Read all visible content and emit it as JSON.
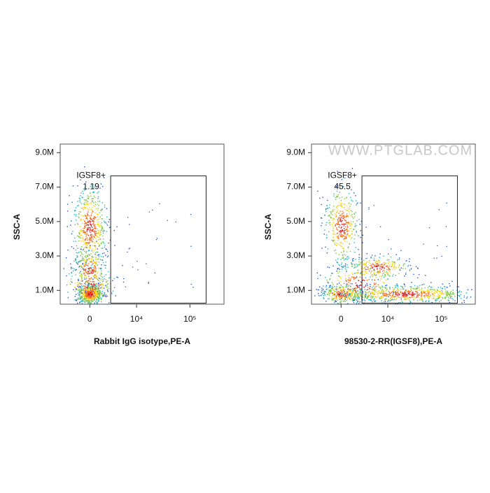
{
  "chart_data": [
    {
      "type": "scatter",
      "x_label": "Rabbit IgG isotype,PE-A",
      "y_label": "SSC-A",
      "xlim": [
        -4500,
        430000
      ],
      "xticks": [
        0,
        {
          "value": 10000,
          "label": "10⁴"
        },
        {
          "value": 100000,
          "label": "10⁵"
        }
      ],
      "ylim": [
        200000,
        9500000
      ],
      "yticks": [
        {
          "value": 1000000,
          "label": "1.0M"
        },
        {
          "value": 3000000,
          "label": "3.0M"
        },
        {
          "value": 5000000,
          "label": "5.0M"
        },
        {
          "value": 7000000,
          "label": "7.0M"
        },
        {
          "value": 9000000,
          "label": "9.0M"
        }
      ],
      "gate": {
        "label": "IGSF8+",
        "value": 1.19,
        "x": [
          2800,
          200000
        ],
        "y": [
          260000,
          7650000
        ]
      }
    },
    {
      "type": "scatter",
      "x_label": "98530-2-RR(IGSF8),PE-A",
      "y_label": "SSC-A",
      "watermark": "WWW.PTGLAB.COM",
      "xlim": [
        -4500,
        430000
      ],
      "xticks": [
        0,
        {
          "value": 10000,
          "label": "10⁴"
        },
        {
          "value": 100000,
          "label": "10⁵"
        }
      ],
      "ylim": [
        200000,
        9500000
      ],
      "yticks": [
        {
          "value": 1000000,
          "label": "1.0M"
        },
        {
          "value": 3000000,
          "label": "3.0M"
        },
        {
          "value": 5000000,
          "label": "5.0M"
        },
        {
          "value": 7000000,
          "label": "7.0M"
        },
        {
          "value": 9000000,
          "label": "9.0M"
        }
      ],
      "gate": {
        "label": "IGSF8+",
        "value": 45.5,
        "x": [
          2800,
          200000
        ],
        "y": [
          260000,
          7650000
        ]
      }
    }
  ]
}
